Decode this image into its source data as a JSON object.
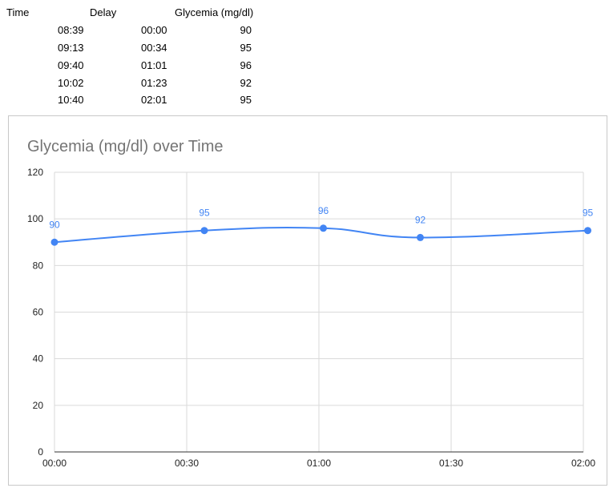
{
  "table": {
    "headers": [
      "Time",
      "Delay",
      "Glycemia (mg/dl)"
    ],
    "rows": [
      {
        "time": "08:39",
        "delay": "00:00",
        "glycemia": "90"
      },
      {
        "time": "09:13",
        "delay": "00:34",
        "glycemia": "95"
      },
      {
        "time": "09:40",
        "delay": "01:01",
        "glycemia": "96"
      },
      {
        "time": "10:02",
        "delay": "01:23",
        "glycemia": "92"
      },
      {
        "time": "10:40",
        "delay": "02:01",
        "glycemia": "95"
      }
    ]
  },
  "chart_data": {
    "type": "line",
    "title": "Glycemia (mg/dl) over Time",
    "xlabel": "",
    "ylabel": "",
    "x": [
      "00:00",
      "00:34",
      "01:01",
      "01:23",
      "02:01"
    ],
    "x_minutes": [
      0,
      34,
      61,
      83,
      121
    ],
    "series": [
      {
        "values": [
          90,
          95,
          96,
          92,
          95
        ],
        "color": "#4285f4"
      }
    ],
    "xlim": [
      "00:00",
      "02:00"
    ],
    "ylim": [
      0,
      120
    ],
    "x_ticks": [
      "00:00",
      "00:30",
      "01:00",
      "01:30",
      "02:00"
    ],
    "y_ticks": [
      0,
      20,
      40,
      60,
      80,
      100,
      120
    ],
    "grid": true,
    "smooth": true,
    "data_labels": true,
    "legend": "none"
  }
}
